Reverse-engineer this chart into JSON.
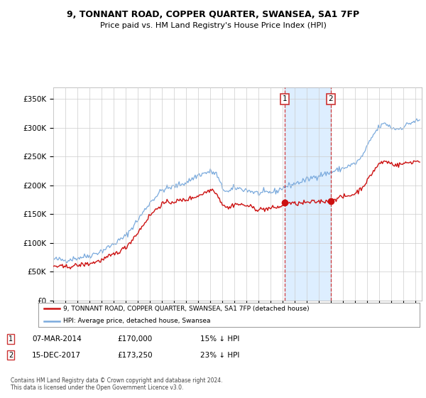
{
  "title": "9, TONNANT ROAD, COPPER QUARTER, SWANSEA, SA1 7FP",
  "subtitle": "Price paid vs. HM Land Registry's House Price Index (HPI)",
  "ylabel_ticks": [
    "£0",
    "£50K",
    "£100K",
    "£150K",
    "£200K",
    "£250K",
    "£300K",
    "£350K"
  ],
  "ytick_vals": [
    0,
    50000,
    100000,
    150000,
    200000,
    250000,
    300000,
    350000
  ],
  "ylim": [
    0,
    370000
  ],
  "xlim_start": 1995.0,
  "xlim_end": 2025.5,
  "hpi_color": "#7aaadd",
  "price_color": "#cc1111",
  "shade_color": "#ddeeff",
  "annotation1": {
    "label": "1",
    "date_num": 2014.18,
    "price": 170000,
    "text": "07-MAR-2014",
    "amount": "£170,000",
    "pct": "15% ↓ HPI"
  },
  "annotation2": {
    "label": "2",
    "date_num": 2017.96,
    "price": 173250,
    "text": "15-DEC-2017",
    "amount": "£173,250",
    "pct": "23% ↓ HPI"
  },
  "legend_line1": "9, TONNANT ROAD, COPPER QUARTER, SWANSEA, SA1 7FP (detached house)",
  "legend_line2": "HPI: Average price, detached house, Swansea",
  "footnote": "Contains HM Land Registry data © Crown copyright and database right 2024.\nThis data is licensed under the Open Government Licence v3.0.",
  "background_color": "#ffffff",
  "grid_color": "#cccccc"
}
